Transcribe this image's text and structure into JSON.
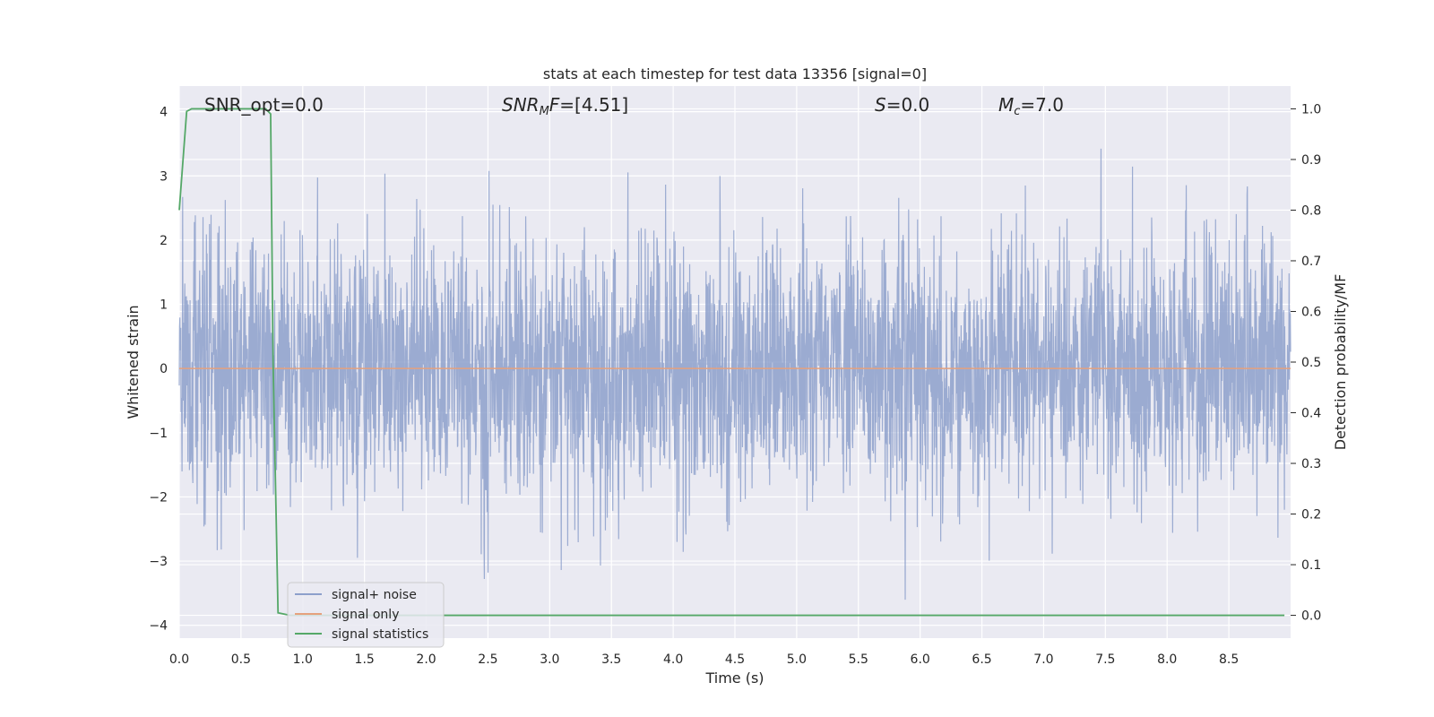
{
  "chart_data": {
    "type": "line",
    "title": "stats at each timestep for test data 13356 [signal=0]",
    "xlabel": "Time (s)",
    "ylabel_left": "Whitened strain",
    "ylabel_right": "Detection probability/MF",
    "xlim": [
      0.0,
      9.0
    ],
    "ylim_left": [
      -4.2,
      4.4
    ],
    "ylim_right": [
      -0.045,
      1.045
    ],
    "x_ticks": [
      0.0,
      0.5,
      1.0,
      1.5,
      2.0,
      2.5,
      3.0,
      3.5,
      4.0,
      4.5,
      5.0,
      5.5,
      6.0,
      6.5,
      7.0,
      7.5,
      8.0,
      8.5
    ],
    "x_tick_labels": [
      "0.0",
      "0.5",
      "1.0",
      "1.5",
      "2.0",
      "2.5",
      "3.0",
      "3.5",
      "4.0",
      "4.5",
      "5.0",
      "5.5",
      "6.0",
      "6.5",
      "7.0",
      "7.5",
      "8.0",
      "8.5"
    ],
    "y_left_ticks": [
      -4,
      -3,
      -2,
      -1,
      0,
      1,
      2,
      3,
      4
    ],
    "y_left_tick_labels": [
      "−4",
      "−3",
      "−2",
      "−1",
      "0",
      "1",
      "2",
      "3",
      "4"
    ],
    "y_right_ticks": [
      0.0,
      0.1,
      0.2,
      0.3,
      0.4,
      0.5,
      0.6,
      0.7,
      0.8,
      0.9,
      1.0
    ],
    "y_right_tick_labels": [
      "0.0",
      "0.1",
      "0.2",
      "0.3",
      "0.4",
      "0.5",
      "0.6",
      "0.7",
      "0.8",
      "0.9",
      "1.0"
    ],
    "grid": true,
    "legend_placement": "lower-left",
    "annotations": [
      {
        "text": "SNR_opt=0.0",
        "x": 0.2
      },
      {
        "text": "SNR_MF=[4.51]",
        "x": 2.6
      },
      {
        "text": "S=0.0",
        "x": 5.6
      },
      {
        "text": "M_c=7.0",
        "x": 6.6
      }
    ],
    "series": [
      {
        "name": "signal+ noise",
        "color": "#8da0cb",
        "axis": "left",
        "kind": "noise",
        "noise_sigma": 1.0,
        "noise_range": [
          -4.0,
          4.0
        ],
        "x_range": [
          0.0,
          9.0
        ]
      },
      {
        "name": "signal only",
        "color": "#e5a17d",
        "axis": "left",
        "x": [
          0.0,
          9.0
        ],
        "y": [
          0.0,
          0.0
        ]
      },
      {
        "name": "signal statistics",
        "color": "#55a868",
        "axis": "right",
        "x": [
          0.0,
          0.06,
          0.1,
          0.2,
          0.3,
          0.5,
          0.7,
          0.74,
          0.76,
          0.8,
          0.9,
          1.0,
          2.0,
          4.0,
          6.0,
          8.0,
          8.95
        ],
        "y": [
          0.8,
          0.995,
          1.0,
          1.0,
          1.0,
          1.0,
          1.0,
          0.99,
          0.5,
          0.005,
          0.0,
          0.0,
          0.0,
          0.0,
          0.0,
          0.0,
          0.0
        ]
      }
    ]
  },
  "colors": {
    "plot_background": "#eaeaf2",
    "grid": "#ffffff",
    "text": "#262626"
  }
}
